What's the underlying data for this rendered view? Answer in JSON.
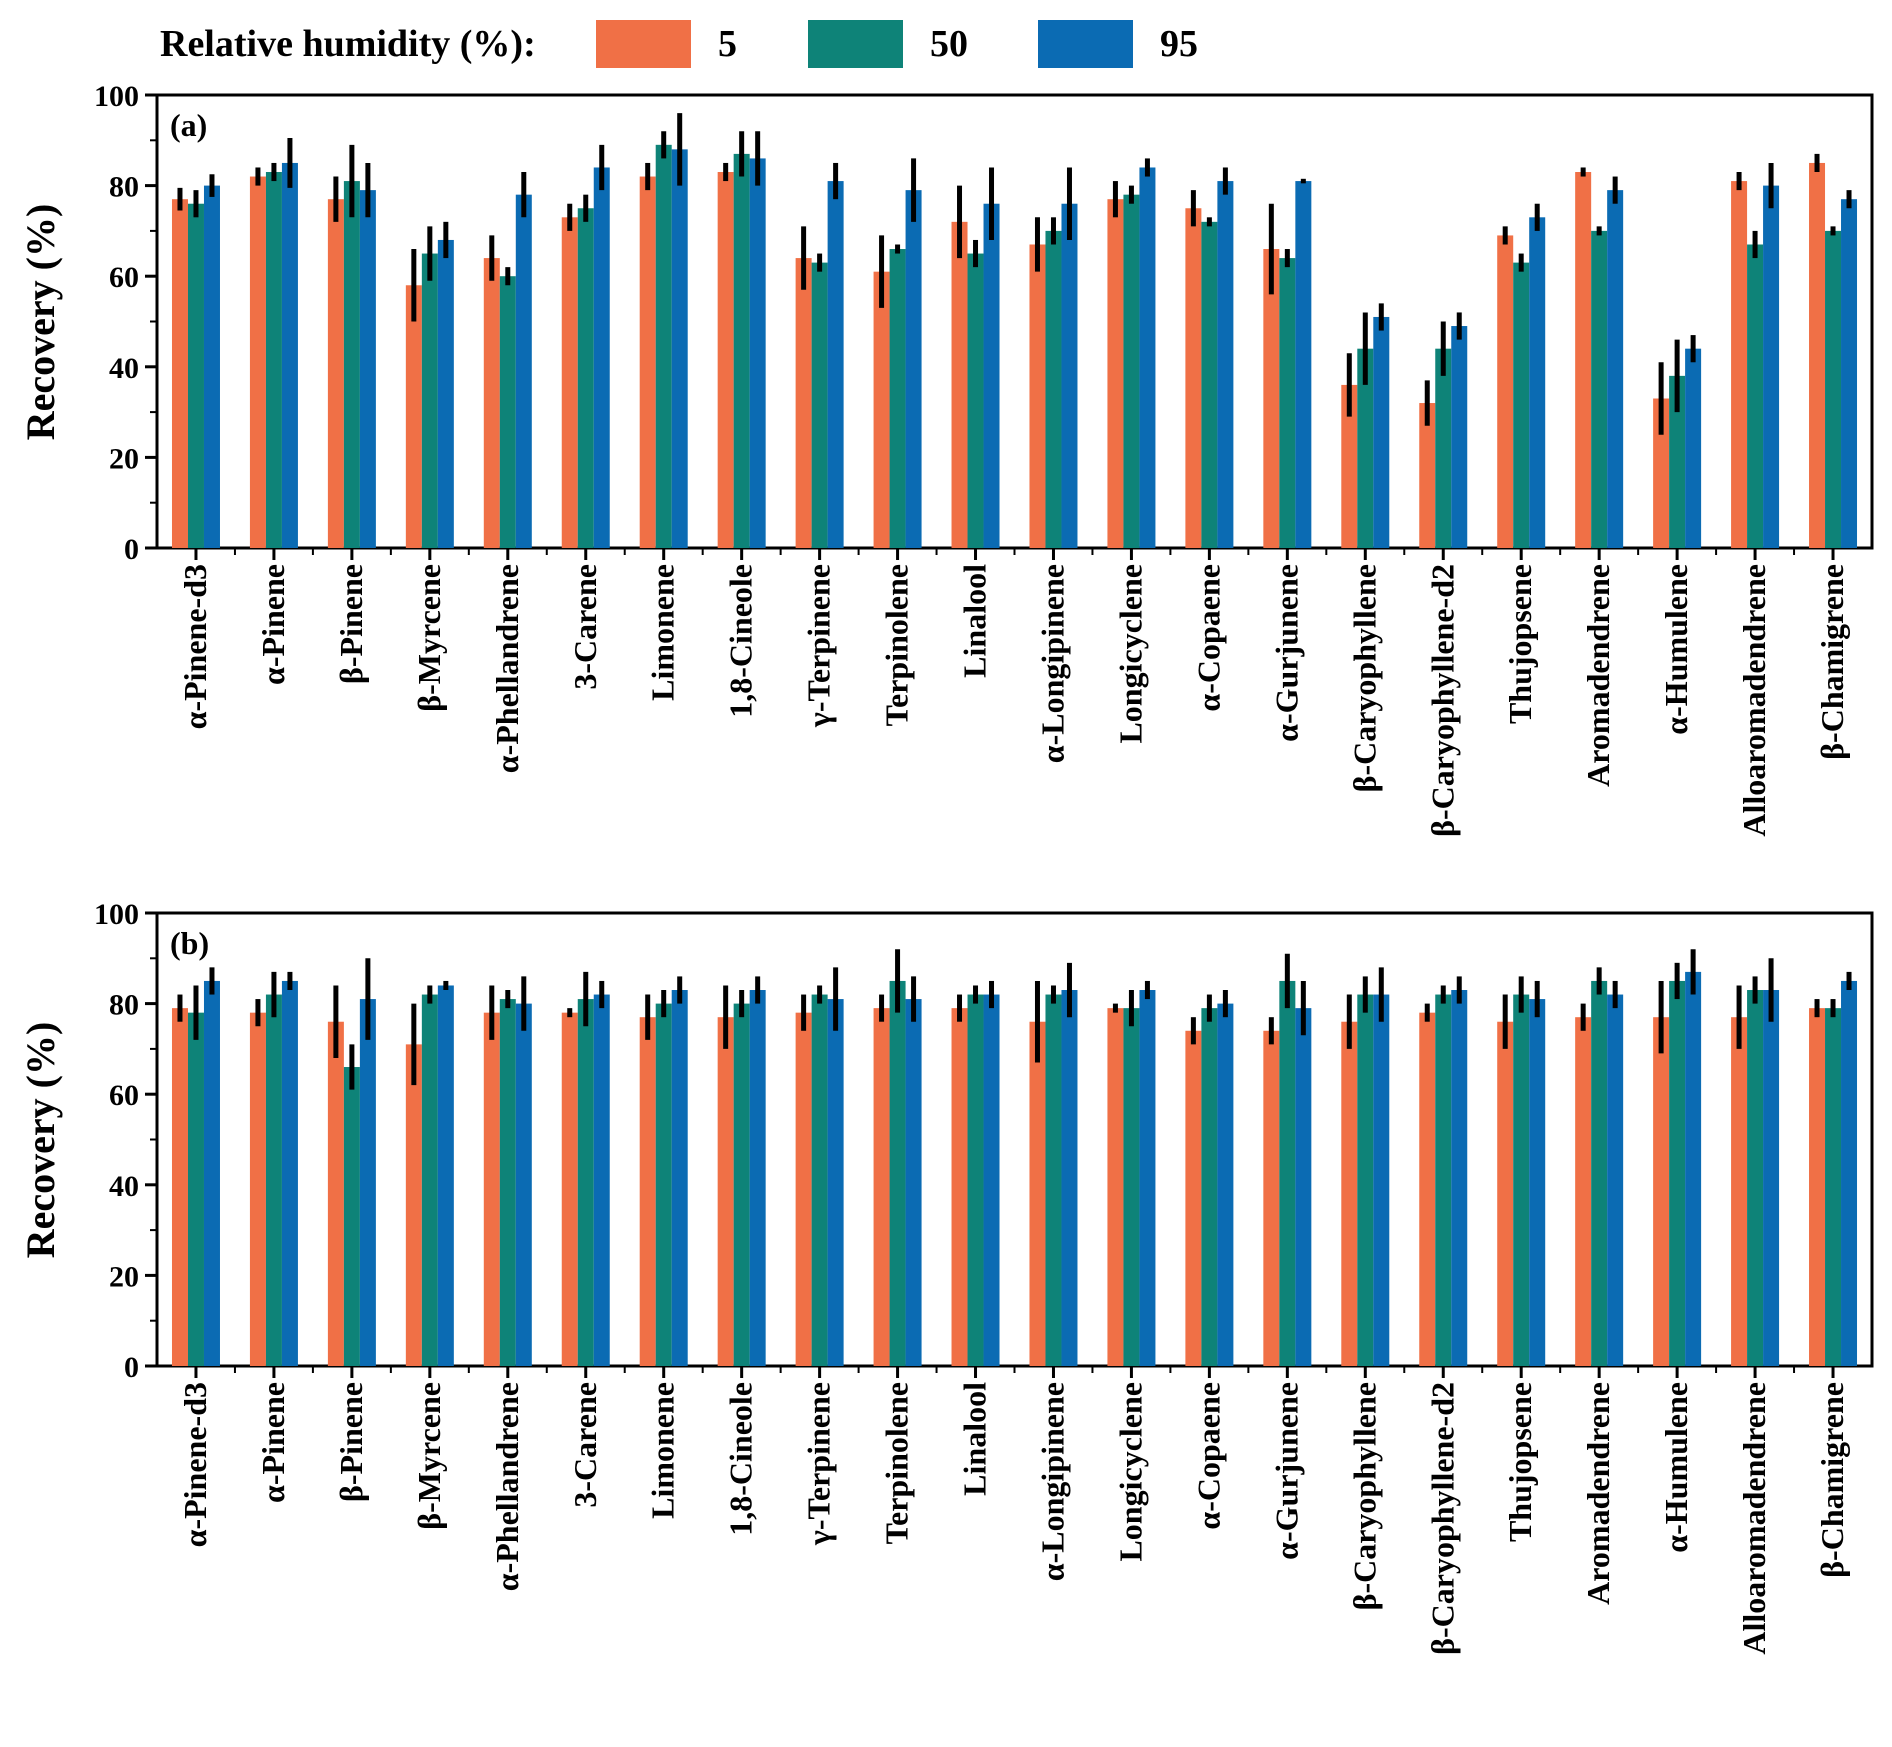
{
  "legend": {
    "title": "Relative humidity (%):",
    "entries": [
      {
        "label": "5",
        "color": "#F07046"
      },
      {
        "label": "50",
        "color": "#0E8378"
      },
      {
        "label": "95",
        "color": "#0B6BB3"
      }
    ]
  },
  "chart_data": [
    {
      "type": "bar",
      "panel_label": "(a)",
      "ylabel": "Recovery (%)",
      "ylim": [
        0,
        100
      ],
      "yticks": [
        0,
        20,
        40,
        60,
        80,
        100
      ],
      "categories": [
        "α-Pinene-d3",
        "α-Pinene",
        "β-Pinene",
        "β-Myrcene",
        "α-Phellandrene",
        "3-Carene",
        "Limonene",
        "1,8-Cineole",
        "γ-Terpinene",
        "Terpinolene",
        "Linalool",
        "α-Longipinene",
        "Longicyclene",
        "α-Copaene",
        "α-Gurjunene",
        "β-Caryophyllene",
        "β-Caryophyllene-d2",
        "Thujopsene",
        "Aromadendrene",
        "α-Humulene",
        "Alloaromadendrene",
        "β-Chamigrene"
      ],
      "series": [
        {
          "name": "5",
          "color": "#F07046",
          "values": [
            77,
            82,
            77,
            58,
            64,
            73,
            82,
            83,
            64,
            61,
            72,
            67,
            77,
            75,
            66,
            36,
            32,
            69,
            83,
            33,
            81,
            85
          ],
          "errors": [
            2.5,
            2,
            5,
            8,
            5,
            3,
            3,
            2,
            7,
            8,
            8,
            6,
            4,
            4,
            10,
            7,
            5,
            2,
            1,
            8,
            2,
            2
          ]
        },
        {
          "name": "50",
          "color": "#0E8378",
          "values": [
            76,
            83,
            81,
            65,
            60,
            75,
            89,
            87,
            63,
            66,
            65,
            70,
            78,
            72,
            64,
            44,
            44,
            63,
            70,
            38,
            67,
            70
          ],
          "errors": [
            3,
            2,
            8,
            6,
            2,
            3,
            3,
            5,
            2,
            1,
            3,
            3,
            2,
            1,
            2,
            8,
            6,
            2,
            1,
            8,
            3,
            1
          ]
        },
        {
          "name": "95",
          "color": "#0B6BB3",
          "values": [
            80,
            85,
            79,
            68,
            78,
            84,
            88,
            86,
            81,
            79,
            76,
            76,
            84,
            81,
            81,
            51,
            49,
            73,
            79,
            44,
            80,
            77
          ],
          "errors": [
            2.5,
            5.5,
            6,
            4,
            5,
            5,
            8,
            6,
            4,
            7,
            8,
            8,
            2,
            3,
            0.5,
            3,
            3,
            3,
            3,
            3,
            5,
            2
          ]
        }
      ]
    },
    {
      "type": "bar",
      "panel_label": "(b)",
      "ylabel": "Recovery (%)",
      "ylim": [
        0,
        100
      ],
      "yticks": [
        0,
        20,
        40,
        60,
        80,
        100
      ],
      "categories": [
        "α-Pinene-d3",
        "α-Pinene",
        "β-Pinene",
        "β-Myrcene",
        "α-Phellandrene",
        "3-Carene",
        "Limonene",
        "1,8-Cineole",
        "γ-Terpinene",
        "Terpinolene",
        "Linalool",
        "α-Longipinene",
        "Longicyclene",
        "α-Copaene",
        "α-Gurjunene",
        "β-Caryophyllene",
        "β-Caryophyllene-d2",
        "Thujopsene",
        "Aromadendrene",
        "α-Humulene",
        "Alloaromadendrene",
        "β-Chamigrene"
      ],
      "series": [
        {
          "name": "5",
          "color": "#F07046",
          "values": [
            79,
            78,
            76,
            71,
            78,
            78,
            77,
            77,
            78,
            79,
            79,
            76,
            79,
            74,
            74,
            76,
            78,
            76,
            77,
            77,
            77,
            79
          ],
          "errors": [
            3,
            3,
            8,
            9,
            6,
            1,
            5,
            7,
            4,
            3,
            3,
            9,
            1,
            3,
            3,
            6,
            2,
            6,
            3,
            8,
            7,
            2
          ]
        },
        {
          "name": "50",
          "color": "#0E8378",
          "values": [
            78,
            82,
            66,
            82,
            81,
            81,
            80,
            80,
            82,
            85,
            82,
            82,
            79,
            79,
            85,
            82,
            82,
            82,
            85,
            85,
            83,
            79
          ],
          "errors": [
            6,
            5,
            5,
            2,
            2,
            6,
            3,
            3,
            2,
            7,
            2,
            2,
            4,
            3,
            6,
            4,
            2,
            4,
            3,
            4,
            3,
            2
          ]
        },
        {
          "name": "95",
          "color": "#0B6BB3",
          "values": [
            85,
            85,
            81,
            84,
            80,
            82,
            83,
            83,
            81,
            81,
            82,
            83,
            83,
            80,
            79,
            82,
            83,
            81,
            82,
            87,
            83,
            85
          ],
          "errors": [
            3,
            2,
            9,
            1,
            6,
            3,
            3,
            3,
            7,
            5,
            3,
            6,
            2,
            3,
            6,
            6,
            3,
            4,
            3,
            5,
            7,
            2
          ]
        }
      ]
    }
  ]
}
